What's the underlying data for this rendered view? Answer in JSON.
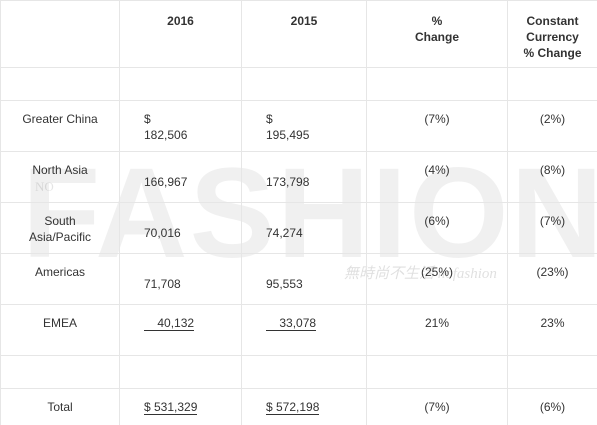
{
  "watermark": {
    "main": "FASHION",
    "sub": "無時尚不生活 nofashion",
    "side": "NO"
  },
  "table": {
    "headers": {
      "label": "",
      "y2016": "2016",
      "y2015": "2015",
      "pct_l1": "%",
      "pct_l2": "Change",
      "cc_l1": "Constant",
      "cc_l2": "Currency",
      "cc_l3": "% Change"
    },
    "rows": [
      {
        "label": "Greater China",
        "label2": "",
        "dollar_2016": "$",
        "v2016": "182,506",
        "dollar_2015": "$",
        "v2015": "195,495",
        "pct": "(7%)",
        "cc": "(2%)"
      },
      {
        "label": "North Asia",
        "label2": "",
        "v2016": "166,967",
        "v2015": "173,798",
        "pct": "(4%)",
        "cc": "(8%)"
      },
      {
        "label": "South",
        "label2": "Asia/Pacific",
        "v2016": "70,016",
        "v2015": "74,274",
        "pct": "(6%)",
        "cc": "(7%)"
      },
      {
        "label": "Americas",
        "label2": "",
        "v2016": "71,708",
        "v2015": "95,553",
        "pct": "(25%)",
        "cc": "(23%)"
      },
      {
        "label": "EMEA",
        "label2": "",
        "v2016": "40,132",
        "v2015": "33,078",
        "pct": "21%",
        "cc": "23%"
      }
    ],
    "total": {
      "label": "Total",
      "v2016": "$  531,329",
      "v2015": "$  572,198",
      "pct": "(7%)",
      "cc": "(6%)"
    }
  }
}
